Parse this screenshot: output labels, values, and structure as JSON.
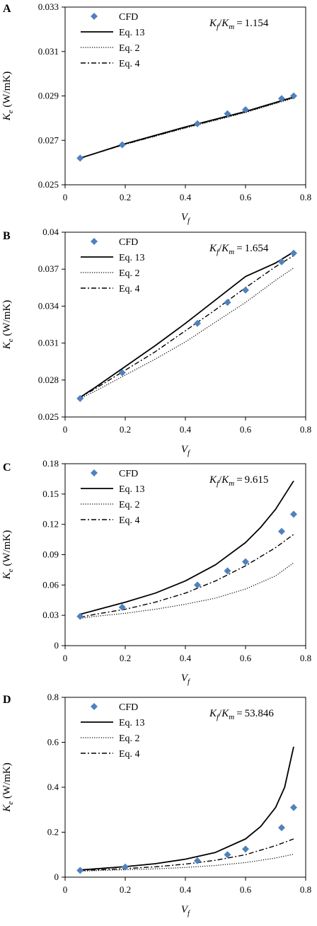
{
  "chart_data": [
    {
      "type": "line",
      "panel": "A",
      "ratio": "Kf/Km = 1.154",
      "xlabel": "Vf",
      "ylabel": "Ke (W/mK)",
      "xlim": [
        0,
        0.8
      ],
      "ylim": [
        0.025,
        0.033
      ],
      "xticks": [
        "0",
        "0.2",
        "0.4",
        "0.6",
        "0.8"
      ],
      "yticks": [
        "0.025",
        "0.027",
        "0.029",
        "0.031",
        "0.033"
      ],
      "grid": false,
      "legend_position": "top-left",
      "series": [
        {
          "name": "CFD",
          "style": "marker",
          "x": [
            0.05,
            0.19,
            0.44,
            0.54,
            0.6,
            0.72,
            0.76
          ],
          "y": [
            0.0262,
            0.0268,
            0.02775,
            0.0282,
            0.02838,
            0.02888,
            0.029
          ]
        },
        {
          "name": "Eq. 13",
          "style": "solid",
          "x": [
            0.05,
            0.2,
            0.4,
            0.6,
            0.76
          ],
          "y": [
            0.0262,
            0.02685,
            0.0276,
            0.0283,
            0.02895
          ]
        },
        {
          "name": "Eq. 2",
          "style": "dotted",
          "x": [
            0.05,
            0.2,
            0.4,
            0.6,
            0.76
          ],
          "y": [
            0.0262,
            0.02682,
            0.02755,
            0.02825,
            0.0289
          ]
        },
        {
          "name": "Eq. 4",
          "style": "dashdot",
          "x": [
            0.05,
            0.2,
            0.4,
            0.6,
            0.76
          ],
          "y": [
            0.0262,
            0.02683,
            0.02758,
            0.02828,
            0.02893
          ]
        }
      ]
    },
    {
      "type": "line",
      "panel": "B",
      "ratio": "Kf/Km = 1.654",
      "xlabel": "Vf",
      "ylabel": "Ke (W/mK)",
      "xlim": [
        0,
        0.8
      ],
      "ylim": [
        0.025,
        0.04
      ],
      "xticks": [
        "0",
        "0.2",
        "0.4",
        "0.6",
        "0.8"
      ],
      "yticks": [
        "0.025",
        "0.028",
        "0.031",
        "0.034",
        "0.037",
        "0.04"
      ],
      "grid": false,
      "legend_position": "top-left",
      "series": [
        {
          "name": "CFD",
          "style": "marker",
          "x": [
            0.05,
            0.19,
            0.44,
            0.54,
            0.6,
            0.72,
            0.76
          ],
          "y": [
            0.0265,
            0.0286,
            0.0326,
            0.0343,
            0.0353,
            0.0376,
            0.0383
          ]
        },
        {
          "name": "Eq. 13",
          "style": "solid",
          "x": [
            0.05,
            0.1,
            0.2,
            0.3,
            0.4,
            0.5,
            0.6,
            0.7,
            0.76
          ],
          "y": [
            0.0266,
            0.0274,
            0.0291,
            0.0308,
            0.0326,
            0.0345,
            0.0364,
            0.0375,
            0.0384
          ]
        },
        {
          "name": "Eq. 2",
          "style": "dotted",
          "x": [
            0.05,
            0.1,
            0.2,
            0.3,
            0.4,
            0.5,
            0.6,
            0.7,
            0.76
          ],
          "y": [
            0.0265,
            0.0271,
            0.0284,
            0.0297,
            0.0311,
            0.0327,
            0.0343,
            0.0361,
            0.0371
          ]
        },
        {
          "name": "Eq. 4",
          "style": "dashdot",
          "x": [
            0.05,
            0.1,
            0.2,
            0.3,
            0.4,
            0.5,
            0.6,
            0.7,
            0.76
          ],
          "y": [
            0.0266,
            0.0273,
            0.0288,
            0.0303,
            0.032,
            0.0337,
            0.0355,
            0.0372,
            0.0381
          ]
        }
      ]
    },
    {
      "type": "line",
      "panel": "C",
      "ratio": "Kf/Km = 9.615",
      "xlabel": "Vf",
      "ylabel": "Ke (W/mK)",
      "xlim": [
        0,
        0.8
      ],
      "ylim": [
        0,
        0.18
      ],
      "xticks": [
        "0",
        "0.2",
        "0.4",
        "0.6",
        "0.8"
      ],
      "yticks": [
        "0",
        "0.03",
        "0.06",
        "0.09",
        "0.12",
        "0.15",
        "0.18"
      ],
      "grid": false,
      "legend_position": "top-left",
      "series": [
        {
          "name": "CFD",
          "style": "marker",
          "x": [
            0.05,
            0.19,
            0.44,
            0.54,
            0.6,
            0.72,
            0.76
          ],
          "y": [
            0.029,
            0.038,
            0.06,
            0.074,
            0.083,
            0.113,
            0.13
          ]
        },
        {
          "name": "Eq. 13",
          "style": "solid",
          "x": [
            0.05,
            0.1,
            0.2,
            0.3,
            0.4,
            0.5,
            0.6,
            0.65,
            0.7,
            0.76
          ],
          "y": [
            0.031,
            0.035,
            0.043,
            0.052,
            0.064,
            0.08,
            0.102,
            0.117,
            0.135,
            0.163
          ]
        },
        {
          "name": "Eq. 2",
          "style": "dotted",
          "x": [
            0.05,
            0.1,
            0.2,
            0.3,
            0.4,
            0.5,
            0.6,
            0.7,
            0.76
          ],
          "y": [
            0.027,
            0.029,
            0.032,
            0.036,
            0.041,
            0.047,
            0.056,
            0.069,
            0.082
          ]
        },
        {
          "name": "Eq. 4",
          "style": "dashdot",
          "x": [
            0.05,
            0.1,
            0.2,
            0.3,
            0.4,
            0.5,
            0.6,
            0.7,
            0.76
          ],
          "y": [
            0.028,
            0.031,
            0.036,
            0.043,
            0.052,
            0.064,
            0.079,
            0.097,
            0.11
          ]
        }
      ]
    },
    {
      "type": "line",
      "panel": "D",
      "ratio": "Kf/Km = 53.846",
      "xlabel": "Vf",
      "ylabel": "Ke (W/mK)",
      "xlim": [
        0,
        0.8
      ],
      "ylim": [
        0,
        0.8
      ],
      "xticks": [
        "0",
        "0.2",
        "0.4",
        "0.6",
        "0.8"
      ],
      "yticks": [
        "0",
        "0.2",
        "0.4",
        "0.6",
        "0.8"
      ],
      "grid": false,
      "legend_position": "top-left",
      "series": [
        {
          "name": "CFD",
          "style": "marker",
          "x": [
            0.05,
            0.2,
            0.44,
            0.54,
            0.6,
            0.72,
            0.76
          ],
          "y": [
            0.03,
            0.045,
            0.073,
            0.1,
            0.125,
            0.22,
            0.31
          ]
        },
        {
          "name": "Eq. 13",
          "style": "solid",
          "x": [
            0.05,
            0.1,
            0.2,
            0.3,
            0.4,
            0.5,
            0.6,
            0.65,
            0.7,
            0.73,
            0.76
          ],
          "y": [
            0.032,
            0.037,
            0.047,
            0.06,
            0.08,
            0.11,
            0.17,
            0.225,
            0.31,
            0.4,
            0.58
          ]
        },
        {
          "name": "Eq. 2",
          "style": "dotted",
          "x": [
            0.05,
            0.1,
            0.2,
            0.3,
            0.4,
            0.5,
            0.6,
            0.7,
            0.76
          ],
          "y": [
            0.027,
            0.029,
            0.033,
            0.037,
            0.043,
            0.052,
            0.065,
            0.085,
            0.102
          ]
        },
        {
          "name": "Eq. 4",
          "style": "dashdot",
          "x": [
            0.05,
            0.1,
            0.2,
            0.3,
            0.4,
            0.5,
            0.6,
            0.7,
            0.76
          ],
          "y": [
            0.029,
            0.032,
            0.038,
            0.046,
            0.058,
            0.075,
            0.1,
            0.14,
            0.17
          ]
        }
      ]
    }
  ]
}
